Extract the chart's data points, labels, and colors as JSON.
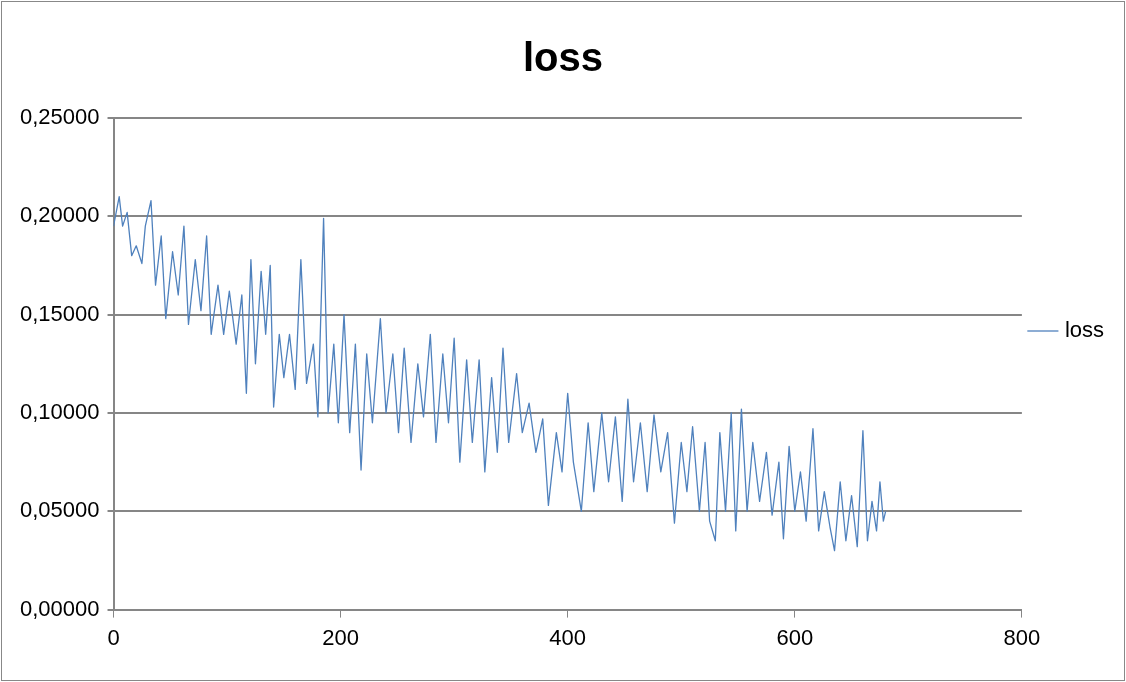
{
  "chart_data": {
    "type": "line",
    "title": "loss",
    "x": [
      0,
      5,
      8,
      12,
      16,
      20,
      25,
      28,
      33,
      37,
      42,
      46,
      52,
      57,
      62,
      66,
      72,
      77,
      82,
      86,
      92,
      97,
      102,
      108,
      113,
      117,
      121,
      125,
      130,
      134,
      138,
      141,
      146,
      150,
      155,
      160,
      165,
      170,
      176,
      180,
      185,
      189,
      194,
      198,
      203,
      208,
      213,
      218,
      223,
      228,
      235,
      240,
      246,
      251,
      256,
      262,
      268,
      273,
      279,
      284,
      290,
      295,
      300,
      305,
      311,
      316,
      322,
      327,
      333,
      338,
      343,
      348,
      355,
      360,
      366,
      372,
      378,
      383,
      390,
      395,
      400,
      405,
      412,
      418,
      423,
      430,
      436,
      442,
      448,
      453,
      458,
      464,
      470,
      476,
      482,
      488,
      494,
      500,
      505,
      510,
      516,
      521,
      525,
      530,
      534,
      539,
      544,
      548,
      553,
      558,
      563,
      569,
      575,
      580,
      586,
      590,
      595,
      600,
      605,
      610,
      616,
      621,
      626,
      631,
      635,
      640,
      645,
      650,
      655,
      660,
      664,
      668,
      672,
      675,
      678,
      680
    ],
    "series": [
      {
        "name": "loss",
        "color": "#4f81bd",
        "values": [
          0.195,
          0.21,
          0.195,
          0.202,
          0.18,
          0.185,
          0.176,
          0.195,
          0.208,
          0.165,
          0.19,
          0.148,
          0.182,
          0.16,
          0.195,
          0.145,
          0.178,
          0.152,
          0.19,
          0.14,
          0.165,
          0.14,
          0.162,
          0.135,
          0.16,
          0.11,
          0.178,
          0.125,
          0.172,
          0.14,
          0.175,
          0.103,
          0.14,
          0.118,
          0.14,
          0.112,
          0.178,
          0.115,
          0.135,
          0.098,
          0.199,
          0.1,
          0.135,
          0.095,
          0.15,
          0.09,
          0.135,
          0.071,
          0.13,
          0.095,
          0.148,
          0.1,
          0.13,
          0.09,
          0.133,
          0.085,
          0.125,
          0.098,
          0.14,
          0.085,
          0.13,
          0.095,
          0.138,
          0.075,
          0.127,
          0.085,
          0.127,
          0.07,
          0.118,
          0.08,
          0.133,
          0.085,
          0.12,
          0.09,
          0.105,
          0.08,
          0.097,
          0.053,
          0.09,
          0.07,
          0.11,
          0.075,
          0.05,
          0.095,
          0.06,
          0.1,
          0.065,
          0.098,
          0.055,
          0.107,
          0.065,
          0.095,
          0.06,
          0.099,
          0.07,
          0.09,
          0.044,
          0.085,
          0.06,
          0.093,
          0.05,
          0.085,
          0.045,
          0.035,
          0.09,
          0.05,
          0.1,
          0.04,
          0.102,
          0.05,
          0.085,
          0.055,
          0.08,
          0.048,
          0.075,
          0.036,
          0.083,
          0.05,
          0.07,
          0.045,
          0.092,
          0.04,
          0.06,
          0.042,
          0.03,
          0.065,
          0.035,
          0.058,
          0.032,
          0.091,
          0.035,
          0.055,
          0.04,
          0.065,
          0.045,
          0.05
        ]
      }
    ],
    "xlim": [
      0,
      800
    ],
    "xticks": [
      0,
      200,
      400,
      600,
      800
    ],
    "ylim": [
      0,
      0.25
    ],
    "yticks": [
      {
        "value": 0,
        "label": "0,00000"
      },
      {
        "value": 0.05,
        "label": "0,05000"
      },
      {
        "value": 0.1,
        "label": "0,10000"
      },
      {
        "value": 0.15,
        "label": "0,15000"
      },
      {
        "value": 0.2,
        "label": "0,20000"
      },
      {
        "value": 0.25,
        "label": "0,25000"
      }
    ],
    "grid": "y",
    "legend": "right",
    "marker": "none",
    "line_style": "solid"
  }
}
